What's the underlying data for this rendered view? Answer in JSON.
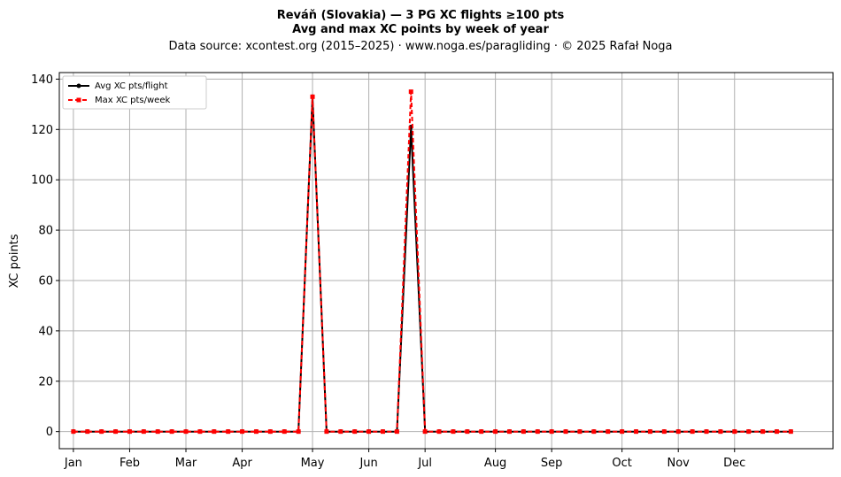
{
  "chart_data": {
    "type": "line",
    "title": "Reváň (Slovakia)  —  3 PG XC flights ≥100 pts",
    "subtitle": "Avg and max XC points by week of year",
    "source_line": "Data source: xcontest.org (2015–2025)  ·  www.noga.es/paragliding  ·  © 2025 Rafał Noga",
    "xlabel": "",
    "ylabel": "XC points",
    "xlim": [
      0,
      55
    ],
    "ylim": [
      -6.8,
      142.6
    ],
    "x_ticks": [
      {
        "week": 1,
        "label": "Jan"
      },
      {
        "week": 5,
        "label": "Feb"
      },
      {
        "week": 9,
        "label": "Mar"
      },
      {
        "week": 13,
        "label": "Apr"
      },
      {
        "week": 18,
        "label": "May"
      },
      {
        "week": 22,
        "label": "Jun"
      },
      {
        "week": 26,
        "label": "Jul"
      },
      {
        "week": 31,
        "label": "Aug"
      },
      {
        "week": 35,
        "label": "Sep"
      },
      {
        "week": 40,
        "label": "Oct"
      },
      {
        "week": 44,
        "label": "Nov"
      },
      {
        "week": 48,
        "label": "Dec"
      }
    ],
    "y_ticks": [
      0,
      20,
      40,
      60,
      80,
      100,
      120,
      140
    ],
    "grid": true,
    "legend_position": "top-left",
    "x": [
      1,
      2,
      3,
      4,
      5,
      6,
      7,
      8,
      9,
      10,
      11,
      12,
      13,
      14,
      15,
      16,
      17,
      18,
      19,
      20,
      21,
      22,
      23,
      24,
      25,
      26,
      27,
      28,
      29,
      30,
      31,
      32,
      33,
      34,
      35,
      36,
      37,
      38,
      39,
      40,
      41,
      42,
      43,
      44,
      45,
      46,
      47,
      48,
      49,
      50,
      51,
      52
    ],
    "series": [
      {
        "name": "Avg XC pts/flight",
        "color": "#000000",
        "style": "solid",
        "marker": "circle",
        "values": [
          0,
          0,
          0,
          0,
          0,
          0,
          0,
          0,
          0,
          0,
          0,
          0,
          0,
          0,
          0,
          0,
          0,
          133,
          0,
          0,
          0,
          0,
          0,
          0,
          121,
          0,
          0,
          0,
          0,
          0,
          0,
          0,
          0,
          0,
          0,
          0,
          0,
          0,
          0,
          0,
          0,
          0,
          0,
          0,
          0,
          0,
          0,
          0,
          0,
          0,
          0,
          0
        ]
      },
      {
        "name": "Max XC pts/week",
        "color": "#ff0000",
        "style": "dashed",
        "marker": "square",
        "values": [
          0,
          0,
          0,
          0,
          0,
          0,
          0,
          0,
          0,
          0,
          0,
          0,
          0,
          0,
          0,
          0,
          0,
          133,
          0,
          0,
          0,
          0,
          0,
          0,
          135,
          0,
          0,
          0,
          0,
          0,
          0,
          0,
          0,
          0,
          0,
          0,
          0,
          0,
          0,
          0,
          0,
          0,
          0,
          0,
          0,
          0,
          0,
          0,
          0,
          0,
          0,
          0
        ]
      }
    ]
  }
}
